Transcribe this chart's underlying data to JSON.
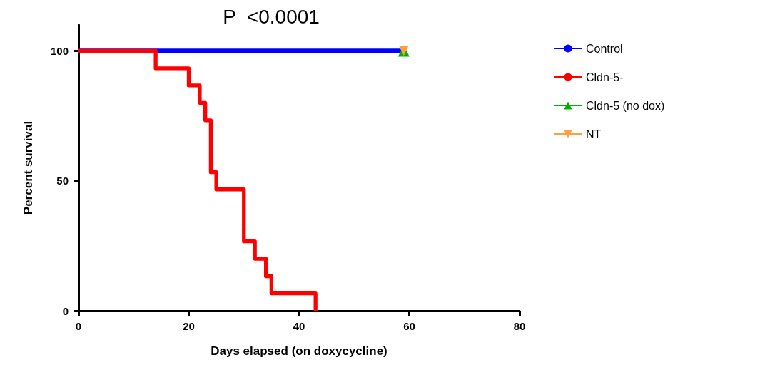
{
  "chart_data": {
    "type": "step",
    "title": "P  <0.0001",
    "xlabel": "Days elapsed (on doxycycline)",
    "ylabel": "Percent survival",
    "xlim": [
      0,
      80
    ],
    "xticks": [
      0,
      20,
      40,
      60,
      80
    ],
    "ylim": [
      0,
      110
    ],
    "yticks": [
      0,
      50,
      100
    ],
    "grid": false,
    "legend": "right",
    "series": [
      {
        "name": "Control",
        "color": "#0000ff",
        "marker": "none",
        "x": [
          0,
          59
        ],
        "values": [
          100,
          100
        ]
      },
      {
        "name": "Cldn-5-",
        "color": "#ff0000",
        "marker": "none",
        "x": [
          0,
          14,
          20,
          22,
          23,
          24,
          25,
          30,
          32,
          34,
          35,
          43
        ],
        "values": [
          100,
          93.3,
          86.7,
          80,
          73.3,
          53.3,
          46.7,
          26.7,
          20,
          13.3,
          6.7,
          0
        ]
      },
      {
        "name": "Cldn-5 (no dox)",
        "color": "#00b000",
        "marker": "triangle",
        "x": [
          59
        ],
        "values": [
          100
        ]
      },
      {
        "name": "NT",
        "color": "#ffa040",
        "marker": "triangle-down",
        "x": [
          59
        ],
        "values": [
          100
        ]
      }
    ]
  }
}
